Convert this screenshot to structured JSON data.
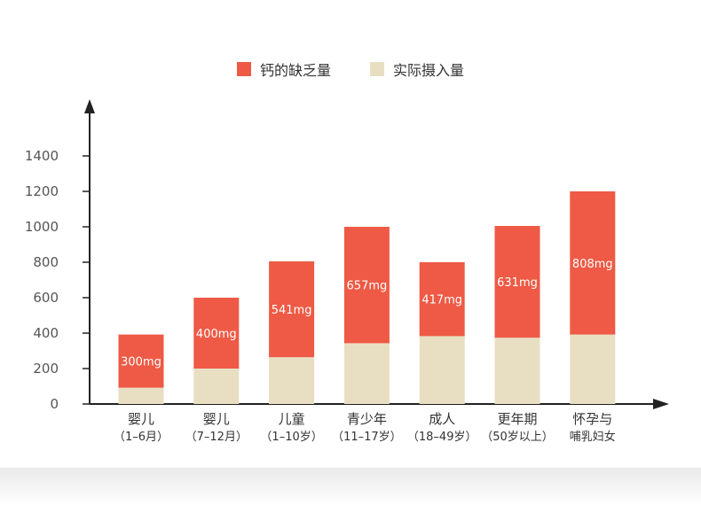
{
  "chart_data": {
    "type": "bar",
    "stacked": true,
    "categories": [
      [
        "婴儿",
        "（1–6月）"
      ],
      [
        "婴儿",
        "（7–12月）"
      ],
      [
        "儿童",
        "（1–10岁）"
      ],
      [
        "青少年",
        "（11–17岁）"
      ],
      [
        "成人",
        "（18–49岁）"
      ],
      [
        "更年期",
        "（50岁以上）"
      ],
      [
        "怀孕与",
        "哺乳妇女"
      ]
    ],
    "series": [
      {
        "name": "实际摄入量",
        "color": "#e8dfc3",
        "values": [
          92,
          200,
          264,
          343,
          383,
          374,
          392
        ]
      },
      {
        "name": "钙的缺乏量",
        "color": "#ee5a45",
        "values": [
          300,
          400,
          541,
          657,
          417,
          631,
          808
        ],
        "labels": [
          "300mg",
          "400mg",
          "541mg",
          "657mg",
          "417mg",
          "631mg",
          "808mg"
        ]
      }
    ],
    "yticks": [
      0,
      200,
      400,
      600,
      800,
      1000,
      1200,
      1400
    ],
    "ylim": [
      0,
      1600
    ],
    "legend_position": "top-center",
    "grid": false
  }
}
